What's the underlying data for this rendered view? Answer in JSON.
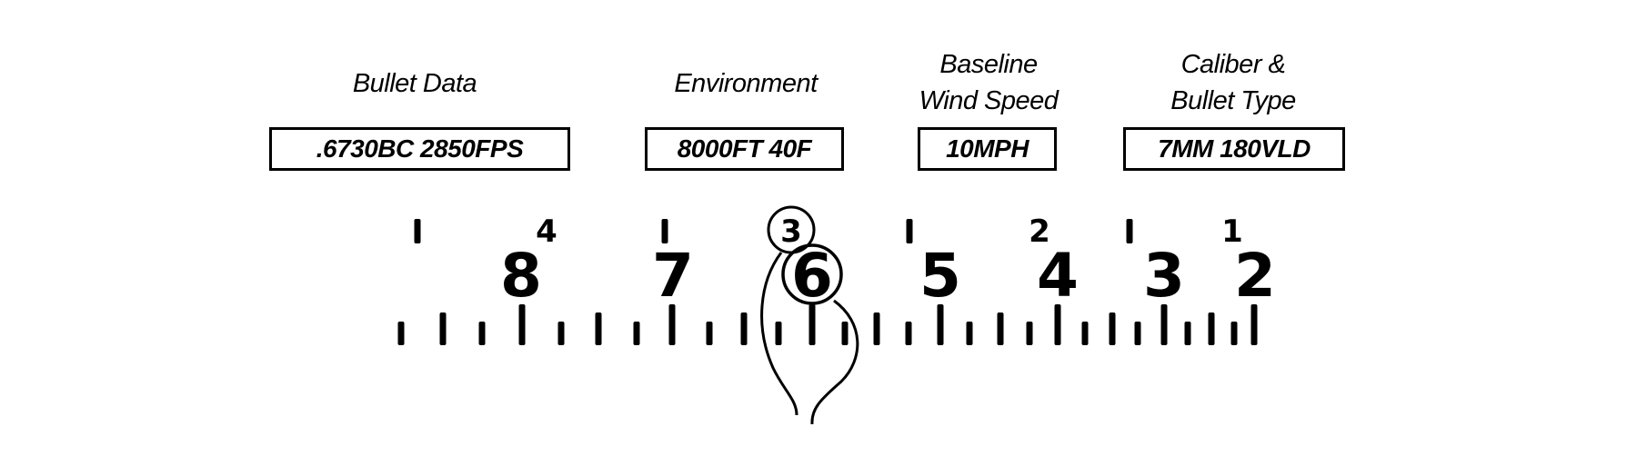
{
  "fields": [
    {
      "label": "Bullet Data",
      "value": ".6730BC 2850FPS"
    },
    {
      "label": "Environment",
      "value": "8000FT 40F"
    },
    {
      "label_lines": [
        "Baseline",
        "Wind Speed"
      ],
      "value": "10MPH"
    },
    {
      "label_lines": [
        "Caliber &",
        "Bullet Type"
      ],
      "value": "7MM 180VLD"
    }
  ],
  "scale": {
    "major_numbers": [
      "8",
      "7",
      "6",
      "5",
      "4",
      "3",
      "2"
    ],
    "highlighted_major": "6",
    "upper_numbers": [
      "4",
      "3",
      "2",
      "1"
    ],
    "highlighted_upper": "3"
  },
  "colors": {
    "ink": "#000000",
    "background": "#ffffff"
  }
}
